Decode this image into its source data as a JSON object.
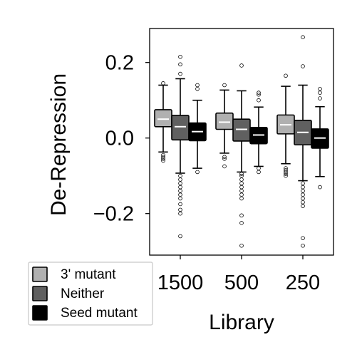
{
  "chart_data": {
    "type": "box",
    "title": "",
    "xlabel": "Library",
    "ylabel": "De-Repression",
    "ylim": [
      -0.31,
      0.29
    ],
    "yticks": [
      0.2,
      0.0,
      -0.2
    ],
    "ytick_labels": [
      "0.2",
      "0.0",
      "−0.2"
    ],
    "categories": [
      "1500",
      "500",
      "250"
    ],
    "grid": false,
    "legend_position": "bottom-left-outside",
    "series": [
      {
        "name": "3' mutant",
        "color": "#b0b0b0",
        "median_color": "#ffffff",
        "boxes": [
          {
            "q1": 0.03,
            "median": 0.05,
            "q3": 0.075,
            "whisker_low": -0.037,
            "whisker_high": 0.14,
            "outliers": [
              0.145,
              -0.045,
              -0.05,
              -0.055,
              -0.06
            ]
          },
          {
            "q1": 0.023,
            "median": 0.042,
            "q3": 0.066,
            "whisker_low": -0.04,
            "whisker_high": 0.127,
            "outliers": [
              0.14,
              -0.05,
              -0.055,
              -0.075
            ]
          },
          {
            "q1": 0.011,
            "median": 0.035,
            "q3": 0.061,
            "whisker_low": -0.068,
            "whisker_high": 0.137,
            "outliers": [
              0.165,
              -0.08,
              -0.085,
              -0.09,
              -0.095,
              -0.1
            ]
          }
        ]
      },
      {
        "name": "Neither",
        "color": "#606060",
        "median_color": "#ffffff",
        "boxes": [
          {
            "q1": -0.005,
            "median": 0.03,
            "q3": 0.06,
            "whisker_low": -0.093,
            "whisker_high": 0.157,
            "outliers": [
              0.215,
              0.195,
              0.17,
              -0.1,
              -0.11,
              -0.12,
              -0.13,
              -0.14,
              -0.15,
              -0.16,
              -0.175,
              -0.19,
              -0.2,
              -0.26
            ]
          },
          {
            "q1": -0.008,
            "median": 0.023,
            "q3": 0.05,
            "whisker_low": -0.09,
            "whisker_high": 0.125,
            "outliers": [
              0.192,
              -0.095,
              -0.1,
              -0.11,
              -0.12,
              -0.13,
              -0.14,
              -0.15,
              -0.16,
              -0.205,
              -0.225,
              -0.285
            ]
          },
          {
            "q1": -0.018,
            "median": 0.015,
            "q3": 0.047,
            "whisker_low": -0.113,
            "whisker_high": 0.14,
            "outliers": [
              0.267,
              0.19,
              -0.12,
              -0.13,
              -0.14,
              -0.15,
              -0.16,
              -0.17,
              -0.18,
              -0.265,
              -0.285
            ]
          }
        ]
      },
      {
        "name": "Seed mutant",
        "color": "#000000",
        "median_color": "#ffffff",
        "boxes": [
          {
            "q1": -0.007,
            "median": 0.017,
            "q3": 0.04,
            "whisker_low": -0.08,
            "whisker_high": 0.1,
            "outliers": [
              0.14,
              0.13,
              -0.09
            ]
          },
          {
            "q1": -0.015,
            "median": 0.008,
            "q3": 0.028,
            "whisker_low": -0.075,
            "whisker_high": 0.082,
            "outliers": [
              0.12,
              0.115,
              0.1,
              -0.08,
              -0.09
            ]
          },
          {
            "q1": -0.027,
            "median": 0.0,
            "q3": 0.024,
            "whisker_low": -0.102,
            "whisker_high": 0.083,
            "outliers": [
              0.13,
              0.12,
              0.105,
              -0.13
            ]
          }
        ]
      }
    ]
  }
}
